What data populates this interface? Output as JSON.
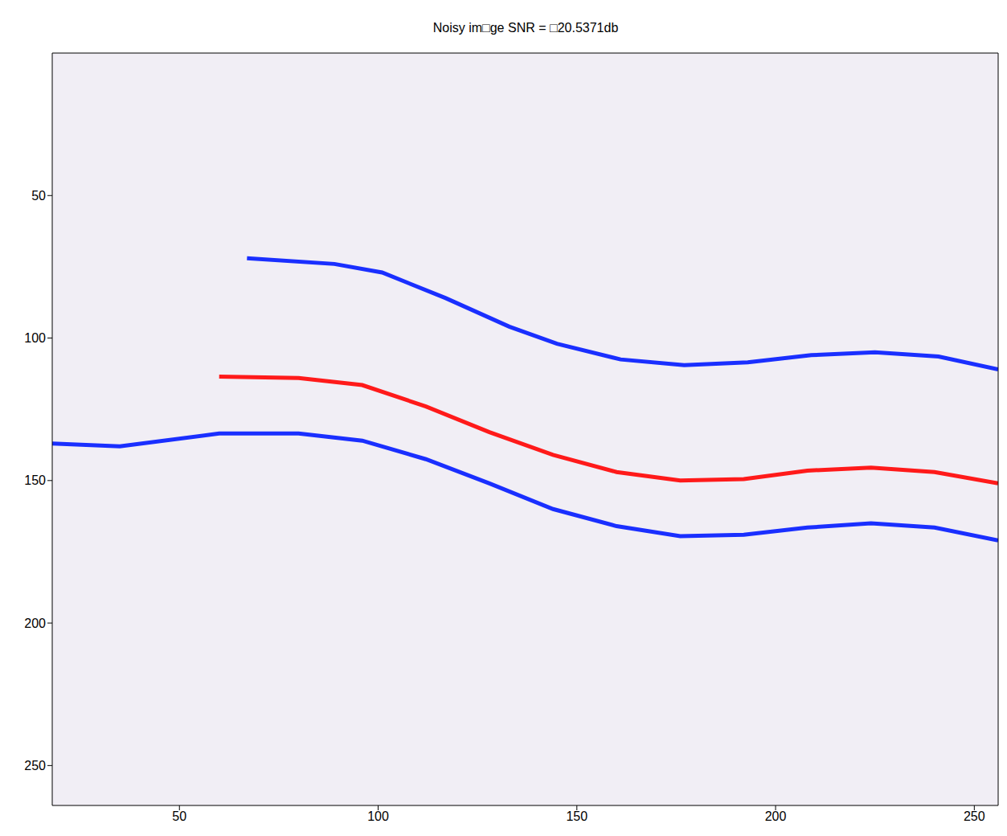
{
  "chart_data": {
    "type": "line",
    "title": "Noisy im□ge SNR = □20.5371db",
    "xlim": [
      18,
      256
    ],
    "ylim": [
      0,
      264
    ],
    "xticks": [
      50,
      100,
      150,
      200,
      250
    ],
    "yticks": [
      50,
      100,
      150,
      200,
      250
    ],
    "grid": false,
    "series": [
      {
        "color": "#1a2fff",
        "x": [
          67,
          89,
          101,
          117,
          133,
          145,
          161,
          177,
          193,
          209,
          225,
          241,
          256
        ],
        "values": [
          72,
          74,
          77,
          86,
          96,
          102,
          107.5,
          109.5,
          108.5,
          106,
          105,
          106.5,
          111
        ]
      },
      {
        "color": "#ff1a1a",
        "x": [
          60,
          80,
          96,
          112,
          128,
          144,
          160,
          176,
          192,
          208,
          224,
          240,
          256
        ],
        "values": [
          113.5,
          114,
          116.5,
          124,
          133,
          141,
          147,
          150,
          149.5,
          146.5,
          145.5,
          147,
          151
        ]
      },
      {
        "color": "#1a2fff",
        "x": [
          18,
          35,
          60,
          80,
          96,
          112,
          128,
          144,
          160,
          176,
          192,
          208,
          224,
          240,
          256
        ],
        "values": [
          137,
          138,
          133.5,
          133.5,
          136,
          142.5,
          151,
          160,
          166,
          169.5,
          169,
          166.5,
          165,
          166.5,
          171
        ]
      }
    ]
  }
}
